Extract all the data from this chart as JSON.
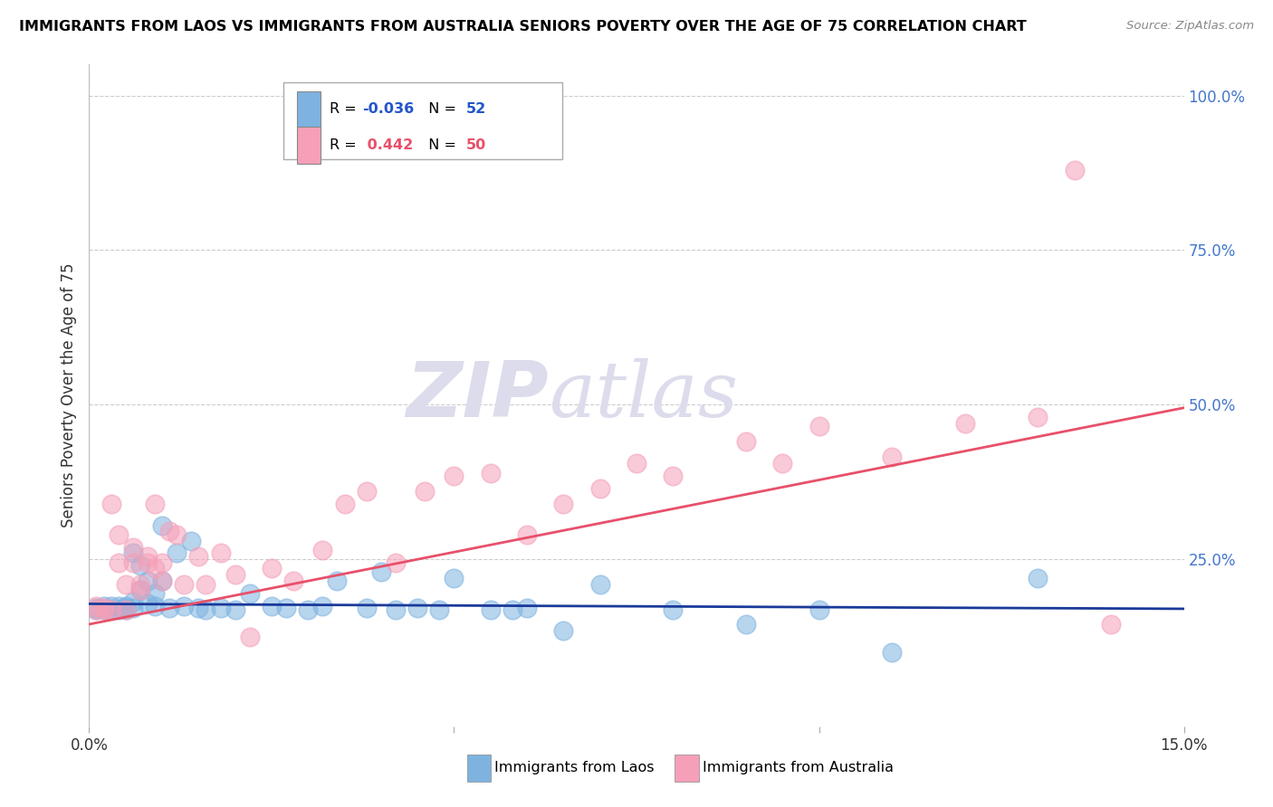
{
  "title": "IMMIGRANTS FROM LAOS VS IMMIGRANTS FROM AUSTRALIA SENIORS POVERTY OVER THE AGE OF 75 CORRELATION CHART",
  "source": "Source: ZipAtlas.com",
  "ylabel": "Seniors Poverty Over the Age of 75",
  "xlim": [
    0.0,
    0.15
  ],
  "ylim": [
    -0.02,
    1.05
  ],
  "right_yticks": [
    1.0,
    0.75,
    0.5,
    0.25
  ],
  "right_yticklabels": [
    "100.0%",
    "75.0%",
    "50.0%",
    "25.0%"
  ],
  "watermark_zip": "ZIP",
  "watermark_atlas": "atlas",
  "color_blue": "#7EB3E0",
  "color_pink": "#F5A0B8",
  "color_blue_line": "#1A3A9A",
  "color_pink_line": "#E8506A",
  "blue_scatter_x": [
    0.001,
    0.001,
    0.002,
    0.002,
    0.003,
    0.003,
    0.004,
    0.004,
    0.005,
    0.005,
    0.005,
    0.006,
    0.006,
    0.006,
    0.007,
    0.007,
    0.008,
    0.008,
    0.009,
    0.009,
    0.01,
    0.01,
    0.011,
    0.012,
    0.013,
    0.014,
    0.015,
    0.016,
    0.018,
    0.02,
    0.022,
    0.025,
    0.027,
    0.03,
    0.032,
    0.034,
    0.038,
    0.04,
    0.042,
    0.045,
    0.048,
    0.05,
    0.055,
    0.058,
    0.06,
    0.065,
    0.07,
    0.08,
    0.09,
    0.1,
    0.11,
    0.13
  ],
  "blue_scatter_y": [
    0.172,
    0.168,
    0.175,
    0.168,
    0.175,
    0.168,
    0.168,
    0.175,
    0.175,
    0.168,
    0.172,
    0.26,
    0.172,
    0.182,
    0.2,
    0.24,
    0.215,
    0.178,
    0.195,
    0.175,
    0.305,
    0.215,
    0.172,
    0.26,
    0.175,
    0.28,
    0.172,
    0.168,
    0.172,
    0.168,
    0.195,
    0.175,
    0.172,
    0.168,
    0.175,
    0.215,
    0.172,
    0.23,
    0.168,
    0.172,
    0.168,
    0.22,
    0.168,
    0.168,
    0.172,
    0.135,
    0.21,
    0.168,
    0.145,
    0.168,
    0.1,
    0.22
  ],
  "pink_scatter_x": [
    0.001,
    0.001,
    0.002,
    0.002,
    0.003,
    0.003,
    0.004,
    0.004,
    0.005,
    0.005,
    0.006,
    0.006,
    0.007,
    0.007,
    0.008,
    0.008,
    0.009,
    0.009,
    0.01,
    0.01,
    0.011,
    0.012,
    0.013,
    0.015,
    0.016,
    0.018,
    0.02,
    0.022,
    0.025,
    0.028,
    0.032,
    0.035,
    0.038,
    0.042,
    0.046,
    0.05,
    0.055,
    0.06,
    0.065,
    0.07,
    0.075,
    0.08,
    0.09,
    0.095,
    0.1,
    0.11,
    0.12,
    0.13,
    0.135,
    0.14
  ],
  "pink_scatter_y": [
    0.168,
    0.175,
    0.168,
    0.172,
    0.34,
    0.168,
    0.245,
    0.29,
    0.21,
    0.168,
    0.27,
    0.245,
    0.21,
    0.2,
    0.245,
    0.255,
    0.235,
    0.34,
    0.215,
    0.245,
    0.295,
    0.29,
    0.21,
    0.255,
    0.21,
    0.26,
    0.225,
    0.125,
    0.235,
    0.215,
    0.265,
    0.34,
    0.36,
    0.245,
    0.36,
    0.385,
    0.39,
    0.29,
    0.34,
    0.365,
    0.405,
    0.385,
    0.44,
    0.405,
    0.465,
    0.415,
    0.47,
    0.48,
    0.88,
    0.145
  ],
  "blue_line_x": [
    0.0,
    0.15
  ],
  "blue_line_y": [
    0.178,
    0.17
  ],
  "pink_line_x": [
    0.0,
    0.15
  ],
  "pink_line_y": [
    0.145,
    0.495
  ],
  "grid_color": "#CCCCCC",
  "background_color": "#FFFFFF",
  "xticks": [
    0.0,
    0.05,
    0.1,
    0.15
  ],
  "xtick_labels_show": [
    "0.0%",
    "",
    "",
    "15.0%"
  ]
}
